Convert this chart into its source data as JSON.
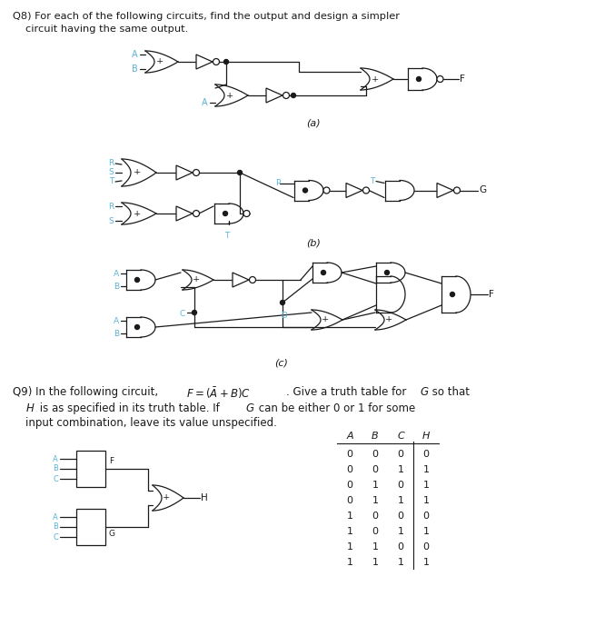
{
  "bg_color": "#ffffff",
  "text_color": "#1a1a1a",
  "gate_color": "#1a1a1a",
  "label_color": "#5ab4d6",
  "fig_width": 6.55,
  "fig_height": 7.0,
  "truth_table_headers": [
    "A",
    "B",
    "C",
    "H"
  ],
  "truth_table_data": [
    [
      0,
      0,
      0,
      0
    ],
    [
      0,
      0,
      1,
      1
    ],
    [
      0,
      1,
      0,
      1
    ],
    [
      0,
      1,
      1,
      1
    ],
    [
      1,
      0,
      0,
      0
    ],
    [
      1,
      0,
      1,
      1
    ],
    [
      1,
      1,
      0,
      0
    ],
    [
      1,
      1,
      1,
      1
    ]
  ]
}
